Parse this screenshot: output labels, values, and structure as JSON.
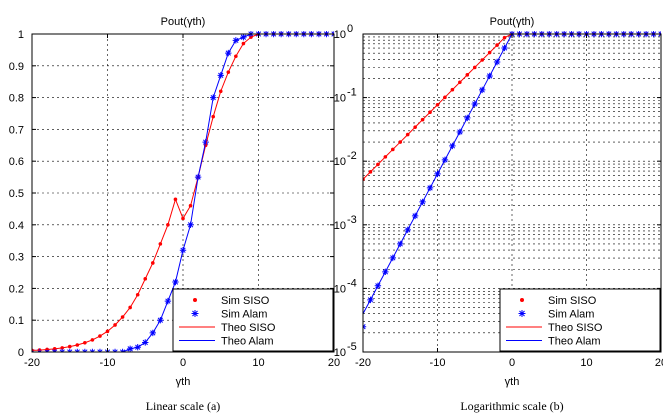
{
  "chart_data": [
    {
      "type": "line",
      "title": "Pout(γth)",
      "xlabel": "γth",
      "caption": "Linear scale (a)",
      "xlim": [
        -20,
        20
      ],
      "ylim": [
        0,
        1
      ],
      "yscale": "linear",
      "grid": true,
      "legend_position": "bottom-right",
      "xticks": [
        -20,
        -10,
        0,
        10,
        20
      ],
      "yticks": [
        0,
        0.1,
        0.2,
        0.3,
        0.4,
        0.5,
        0.6,
        0.7,
        0.8,
        0.9,
        1
      ],
      "x": [
        -20,
        -19,
        -18,
        -17,
        -16,
        -15,
        -14,
        -13,
        -12,
        -11,
        -10,
        -9,
        -8,
        -7,
        -6,
        -5,
        -4,
        -3,
        -2,
        -1,
        0,
        1,
        2,
        3,
        4,
        5,
        6,
        7,
        8,
        9,
        10,
        11,
        12,
        13,
        14,
        15,
        16,
        17,
        18,
        19,
        20
      ],
      "series": [
        {
          "name": "Sim SISO",
          "style": "markers",
          "marker": "dot",
          "color": "#ff0000",
          "values": [
            0.005,
            0.006,
            0.008,
            0.01,
            0.013,
            0.017,
            0.022,
            0.029,
            0.038,
            0.05,
            0.065,
            0.085,
            0.11,
            0.14,
            0.18,
            0.23,
            0.28,
            0.34,
            0.4,
            0.48,
            0.42,
            0.46,
            0.55,
            0.65,
            0.74,
            0.82,
            0.88,
            0.93,
            0.97,
            0.99,
            1,
            1,
            1,
            1,
            1,
            1,
            1,
            1,
            1,
            1,
            1
          ]
        },
        {
          "name": "Sim Alam",
          "style": "markers",
          "marker": "star",
          "color": "#0000ff",
          "values": [
            0.0,
            0.0,
            0.0,
            0.0,
            0.0,
            0.0,
            0.0,
            0.0,
            0.0,
            0.0,
            0.0,
            0.0,
            0.0,
            0.01,
            0.015,
            0.03,
            0.06,
            0.1,
            0.16,
            0.22,
            0.32,
            0.4,
            0.55,
            0.66,
            0.8,
            0.87,
            0.94,
            0.98,
            0.99,
            1,
            1,
            1,
            1,
            1,
            1,
            1,
            1,
            1,
            1,
            1,
            1
          ]
        },
        {
          "name": "Theo SISO",
          "style": "line",
          "color": "#ff0000",
          "values": [
            0.005,
            0.006,
            0.008,
            0.01,
            0.013,
            0.017,
            0.022,
            0.029,
            0.038,
            0.05,
            0.065,
            0.085,
            0.11,
            0.14,
            0.18,
            0.23,
            0.28,
            0.34,
            0.4,
            0.48,
            0.42,
            0.46,
            0.55,
            0.65,
            0.74,
            0.82,
            0.88,
            0.93,
            0.97,
            0.99,
            1,
            1,
            1,
            1,
            1,
            1,
            1,
            1,
            1,
            1,
            1
          ]
        },
        {
          "name": "Theo Alam",
          "style": "line",
          "color": "#0000ff",
          "values": [
            0.0,
            0.0,
            0.0,
            0.0,
            0.0,
            0.0,
            0.0,
            0.0,
            0.0,
            0.0,
            0.0,
            0.0,
            0.0,
            0.01,
            0.015,
            0.03,
            0.06,
            0.1,
            0.16,
            0.22,
            0.32,
            0.4,
            0.55,
            0.66,
            0.8,
            0.87,
            0.94,
            0.98,
            0.99,
            1,
            1,
            1,
            1,
            1,
            1,
            1,
            1,
            1,
            1,
            1,
            1
          ]
        }
      ]
    },
    {
      "type": "line",
      "title": "Pout(γth)",
      "xlabel": "γth",
      "caption": "Logarithmic scale (b)",
      "xlim": [
        -20,
        20
      ],
      "ylim": [
        1e-05,
        1
      ],
      "yscale": "log",
      "grid": true,
      "legend_position": "bottom-right",
      "xticks": [
        -20,
        -10,
        0,
        10,
        20
      ],
      "yticks": [
        1e-05,
        0.0001,
        0.001,
        0.01,
        0.1,
        1
      ],
      "ytick_labels": [
        "10",
        "10",
        "10",
        "10",
        "10",
        "10"
      ],
      "ytick_exponents": [
        "-5",
        "-4",
        "-3",
        "-2",
        "-1",
        "0"
      ],
      "x": [
        -20,
        -19,
        -18,
        -17,
        -16,
        -15,
        -14,
        -13,
        -12,
        -11,
        -10,
        -9,
        -8,
        -7,
        -6,
        -5,
        -4,
        -3,
        -2,
        -1,
        0,
        1,
        2,
        3,
        4,
        5,
        6,
        7,
        8,
        9,
        10,
        11,
        12,
        13,
        14,
        15,
        16,
        17,
        18,
        19,
        20
      ],
      "series": [
        {
          "name": "Sim SISO",
          "style": "markers",
          "marker": "dot",
          "color": "#ff0000",
          "values": [
            0.0052,
            0.0068,
            0.0089,
            0.0117,
            0.0153,
            0.02,
            0.0262,
            0.0343,
            0.045,
            0.0589,
            0.0772,
            0.101,
            0.133,
            0.174,
            0.228,
            0.298,
            0.39,
            0.511,
            0.669,
            0.876,
            1,
            1,
            1,
            1,
            1,
            1,
            1,
            1,
            1,
            1,
            1,
            1,
            1,
            1,
            1,
            1,
            1,
            1,
            1,
            1,
            1
          ]
        },
        {
          "name": "Sim Alam",
          "style": "markers",
          "marker": "star",
          "color": "#0000ff",
          "values": [
            2.5e-05,
            6.6e-05,
            0.00011,
            0.000182,
            0.000302,
            0.000501,
            0.000832,
            0.00138,
            0.00229,
            0.0038,
            0.00631,
            0.0105,
            0.0174,
            0.0288,
            0.0479,
            0.0794,
            0.132,
            0.219,
            0.363,
            0.603,
            1,
            1,
            1,
            1,
            1,
            1,
            1,
            1,
            1,
            1,
            1,
            1,
            1,
            1,
            1,
            1,
            1,
            1,
            1,
            1,
            1
          ]
        },
        {
          "name": "Theo SISO",
          "style": "line",
          "color": "#ff0000",
          "values": [
            0.0052,
            0.0068,
            0.0089,
            0.0117,
            0.0153,
            0.02,
            0.0262,
            0.0343,
            0.045,
            0.0589,
            0.0772,
            0.101,
            0.133,
            0.174,
            0.228,
            0.298,
            0.39,
            0.511,
            0.669,
            0.876,
            1,
            1,
            1,
            1,
            1,
            1,
            1,
            1,
            1,
            1,
            1,
            1,
            1,
            1,
            1,
            1,
            1,
            1,
            1,
            1,
            1
          ]
        },
        {
          "name": "Theo Alam",
          "style": "line",
          "color": "#0000ff",
          "values": [
            4e-05,
            6.6e-05,
            0.00011,
            0.000182,
            0.000302,
            0.000501,
            0.000832,
            0.00138,
            0.00229,
            0.0038,
            0.00631,
            0.0105,
            0.0174,
            0.0288,
            0.0479,
            0.0794,
            0.132,
            0.219,
            0.363,
            0.603,
            1,
            1,
            1,
            1,
            1,
            1,
            1,
            1,
            1,
            1,
            1,
            1,
            1,
            1,
            1,
            1,
            1,
            1,
            1,
            1,
            1
          ]
        }
      ]
    }
  ]
}
